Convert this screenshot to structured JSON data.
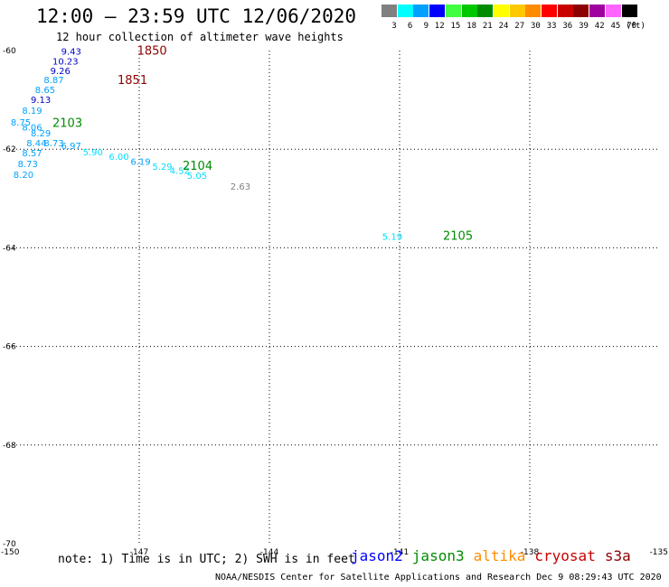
{
  "header": {
    "title": "12:00 – 23:59 UTC 12/06/2020",
    "subtitle": "12 hour collection of altimeter wave heights"
  },
  "legend": {
    "unit": "(ft)",
    "bins": [
      {
        "label": "3",
        "color": "#808080"
      },
      {
        "label": "6",
        "color": "#00ffff"
      },
      {
        "label": "9",
        "color": "#00a0ff"
      },
      {
        "label": "12",
        "color": "#0000ff"
      },
      {
        "label": "15",
        "color": "#40ff40"
      },
      {
        "label": "18",
        "color": "#00c800"
      },
      {
        "label": "21",
        "color": "#008c00"
      },
      {
        "label": "24",
        "color": "#ffff00"
      },
      {
        "label": "27",
        "color": "#ffc800"
      },
      {
        "label": "30",
        "color": "#ff8c00"
      },
      {
        "label": "33",
        "color": "#ff0000"
      },
      {
        "label": "36",
        "color": "#c80000"
      },
      {
        "label": "39",
        "color": "#8c0000"
      },
      {
        "label": "42",
        "color": "#a000a0"
      },
      {
        "label": "45",
        "color": "#ff64ff"
      },
      {
        "label": "70",
        "color": "#000000"
      }
    ]
  },
  "map": {
    "lon_ticks": [
      "-150",
      "-147",
      "-144",
      "-141",
      "-138",
      "-135"
    ],
    "lat_ticks": [
      "-60",
      "-62",
      "-64",
      "-66",
      "-68",
      "-70"
    ],
    "lon_range": [
      -150,
      -135
    ],
    "lat_range": [
      -70,
      -60
    ],
    "grid": true
  },
  "observations": [
    {
      "text": "9.43",
      "lon": -148.8,
      "lat": -60.08,
      "color": "#0000c8"
    },
    {
      "text": "10.23",
      "lon": -149.0,
      "lat": -60.28,
      "color": "#0000c8"
    },
    {
      "text": "9.26",
      "lon": -149.05,
      "lat": -60.48,
      "color": "#0000c8"
    },
    {
      "text": "8.87",
      "lon": -149.2,
      "lat": -60.66,
      "color": "#00a0ff"
    },
    {
      "text": "8.65",
      "lon": -149.4,
      "lat": -60.86,
      "color": "#00a0ff"
    },
    {
      "text": "9.13",
      "lon": -149.5,
      "lat": -61.06,
      "color": "#0000c8"
    },
    {
      "text": "8.19",
      "lon": -149.7,
      "lat": -61.28,
      "color": "#00a0ff"
    },
    {
      "text": "8.75",
      "lon": -149.96,
      "lat": -61.52,
      "color": "#00a0ff"
    },
    {
      "text": "8.06",
      "lon": -149.7,
      "lat": -61.62,
      "color": "#00a0ff"
    },
    {
      "text": "8.29",
      "lon": -149.5,
      "lat": -61.74,
      "color": "#00a0ff"
    },
    {
      "text": "8.44",
      "lon": -149.6,
      "lat": -61.94,
      "color": "#00a0ff"
    },
    {
      "text": "8.73",
      "lon": -149.2,
      "lat": -61.94,
      "color": "#00a0ff"
    },
    {
      "text": "8.57",
      "lon": -149.7,
      "lat": -62.14,
      "color": "#00a0ff"
    },
    {
      "text": "8.73",
      "lon": -149.8,
      "lat": -62.36,
      "color": "#00a0ff"
    },
    {
      "text": "8.20",
      "lon": -149.9,
      "lat": -62.58,
      "color": "#00a0ff"
    },
    {
      "text": "6.97",
      "lon": -148.8,
      "lat": -62.0,
      "color": "#00a0ff"
    },
    {
      "text": "5.90",
      "lon": -148.3,
      "lat": -62.12,
      "color": "#00e0ff"
    },
    {
      "text": "6.00",
      "lon": -147.7,
      "lat": -62.22,
      "color": "#00e0ff"
    },
    {
      "text": "6.19",
      "lon": -147.2,
      "lat": -62.32,
      "color": "#00a0ff"
    },
    {
      "text": "5.29",
      "lon": -146.7,
      "lat": -62.42,
      "color": "#00e0ff"
    },
    {
      "text": "4.52",
      "lon": -146.3,
      "lat": -62.5,
      "color": "#00e0ff"
    },
    {
      "text": "5.05",
      "lon": -145.9,
      "lat": -62.6,
      "color": "#00e0ff"
    },
    {
      "text": "2.63",
      "lon": -144.9,
      "lat": -62.82,
      "color": "#808080"
    },
    {
      "text": "5.19",
      "lon": -141.4,
      "lat": -63.84,
      "color": "#00e0ff"
    }
  ],
  "time_labels": [
    {
      "text": "1850",
      "lon": -147.05,
      "lat": -60.08,
      "color": "#8c0000"
    },
    {
      "text": "1851",
      "lon": -147.5,
      "lat": -60.68,
      "color": "#8c0000"
    },
    {
      "text": "2103",
      "lon": -149.0,
      "lat": -61.55,
      "color": "#008c00"
    },
    {
      "text": "2104",
      "lon": -146.0,
      "lat": -62.42,
      "color": "#008c00"
    },
    {
      "text": "2105",
      "lon": -140.0,
      "lat": -63.84,
      "color": "#008c00"
    }
  ],
  "footer": {
    "note": "note: 1) Time is in UTC; 2) SWH is in feet",
    "satellites": [
      {
        "name": "jason2",
        "color": "#0000ff"
      },
      {
        "name": "jason3",
        "color": "#008c00"
      },
      {
        "name": "altika",
        "color": "#ff8c00"
      },
      {
        "name": "cryosat",
        "color": "#c80000"
      },
      {
        "name": "s3a",
        "color": "#8c0000"
      }
    ],
    "credit": "NOAA/NESDIS Center for Satellite Applications and Research   Dec  9 08:29:43 UTC 2020"
  }
}
